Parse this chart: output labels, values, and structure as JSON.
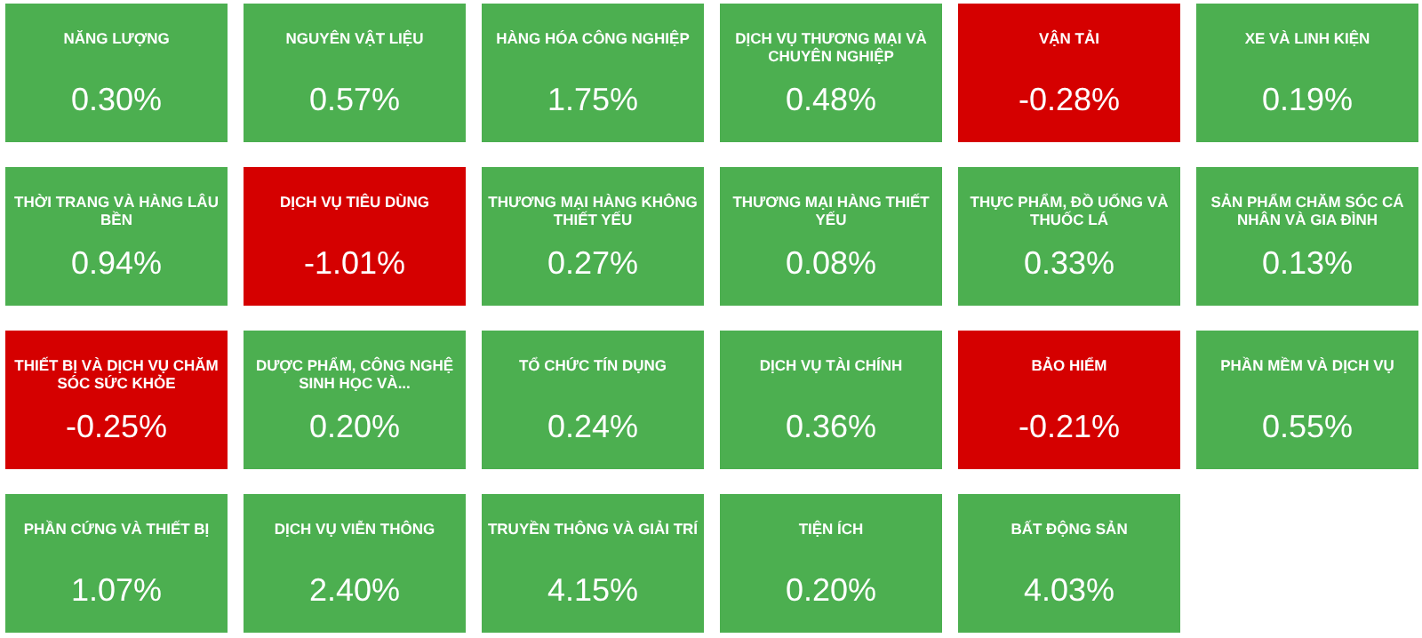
{
  "chart_data": {
    "type": "other",
    "categories": [
      "NĂNG LƯỢNG",
      "NGUYÊN VẬT LIỆU",
      "HÀNG HÓA CÔNG NGHIỆP",
      "DỊCH VỤ THƯƠNG MẠI VÀ CHUYÊN NGHIỆP",
      "VẬN TẢI",
      "XE VÀ LINH KIỆN",
      "THỜI TRANG VÀ HÀNG LÂU BỀN",
      "DỊCH VỤ TIÊU DÙNG",
      "THƯƠNG MẠI HÀNG KHÔNG THIẾT YẾU",
      "THƯƠNG MẠI HÀNG THIẾT YẾU",
      "THỰC PHẨM, ĐỒ UỐNG VÀ THUỐC LÁ",
      "SẢN PHẨM CHĂM SÓC CÁ NHÂN VÀ GIA ĐÌNH",
      "THIẾT BỊ VÀ DỊCH VỤ CHĂM SÓC SỨC KHỎE",
      "DƯỢC PHẨM, CÔNG NGHỆ SINH HỌC VÀ...",
      "TỔ CHỨC TÍN DỤNG",
      "DỊCH VỤ TÀI CHÍNH",
      "BẢO HIỂM",
      "PHẦN MỀM VÀ DỊCH VỤ",
      "PHẦN CỨNG VÀ THIẾT BỊ",
      "DỊCH VỤ VIỄN THÔNG",
      "TRUYỀN THÔNG VÀ GIẢI TRÍ",
      "TIỆN ÍCH",
      "BẤT ĐỘNG SẢN"
    ],
    "values": [
      0.3,
      0.57,
      1.75,
      0.48,
      -0.28,
      0.19,
      0.94,
      -1.01,
      0.27,
      0.08,
      0.33,
      0.13,
      -0.25,
      0.2,
      0.24,
      0.36,
      -0.21,
      0.55,
      1.07,
      2.4,
      4.15,
      0.2,
      4.03
    ],
    "value_labels": [
      "0.30%",
      "0.57%",
      "1.75%",
      "0.48%",
      "-0.28%",
      "0.19%",
      "0.94%",
      "-1.01%",
      "0.27%",
      "0.08%",
      "0.33%",
      "0.13%",
      "-0.25%",
      "0.20%",
      "0.24%",
      "0.36%",
      "-0.21%",
      "0.55%",
      "1.07%",
      "2.40%",
      "4.15%",
      "0.20%",
      "4.03%"
    ],
    "colors": [
      "#4caf50",
      "#4caf50",
      "#4caf50",
      "#4caf50",
      "#d50000",
      "#4caf50",
      "#4caf50",
      "#d50000",
      "#4caf50",
      "#4caf50",
      "#4caf50",
      "#4caf50",
      "#d50000",
      "#4caf50",
      "#4caf50",
      "#4caf50",
      "#d50000",
      "#4caf50",
      "#4caf50",
      "#4caf50",
      "#4caf50",
      "#4caf50",
      "#4caf50"
    ]
  }
}
